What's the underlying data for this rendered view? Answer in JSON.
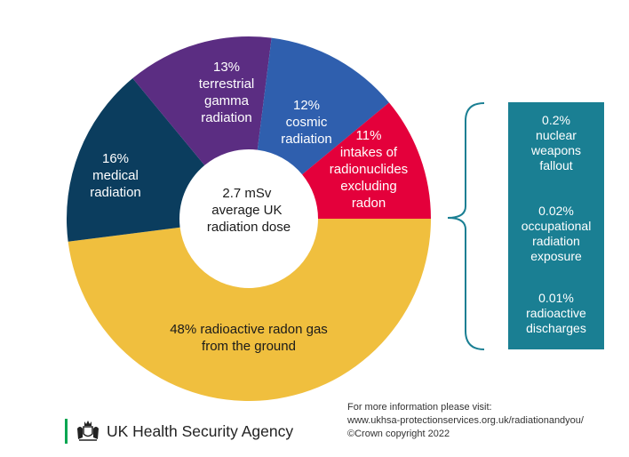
{
  "chart_data": {
    "type": "donut",
    "center_label": [
      "2.7 mSv",
      "average UK",
      "radiation dose"
    ],
    "slices": [
      {
        "label": [
          "48% radioactive radon gas",
          "from the ground"
        ],
        "value": 48,
        "color": "#f0bf3e",
        "text_color": "#1a1a1a"
      },
      {
        "label": [
          "16%",
          "medical",
          "radiation"
        ],
        "value": 16,
        "color": "#0b3d5e",
        "text_color": "#ffffff"
      },
      {
        "label": [
          "13%",
          "terrestrial",
          "gamma",
          "radiation"
        ],
        "value": 13,
        "color": "#5b2d82",
        "text_color": "#ffffff"
      },
      {
        "label": [
          "12%",
          "cosmic",
          "radiation"
        ],
        "value": 12,
        "color": "#2f5fae",
        "text_color": "#ffffff"
      },
      {
        "label": [
          "11%",
          "intakes of",
          "radionuclides",
          "excluding",
          "radon"
        ],
        "value": 11,
        "color": "#e4003b",
        "text_color": "#ffffff"
      }
    ],
    "minor_sources": [
      {
        "label": [
          "0.2%",
          "nuclear",
          "weapons",
          "fallout"
        ],
        "value": 0.2
      },
      {
        "label": [
          "0.02%",
          "occupational",
          "radiation",
          "exposure"
        ],
        "value": 0.02
      },
      {
        "label": [
          "0.01%",
          "radioactive",
          "discharges"
        ],
        "value": 0.01
      }
    ],
    "minor_box_color": "#1a7f93",
    "bracket_color": "#1a7f93"
  },
  "footer": {
    "lines": [
      "For more information please visit:",
      "www.ukhsa-protectionservices.org.uk/radiationandyou/",
      "©Crown copyright 2022"
    ]
  },
  "logo": {
    "text": "UK Health Security Agency",
    "icon": "royal-crest-icon",
    "bar_color": "#00a651"
  }
}
